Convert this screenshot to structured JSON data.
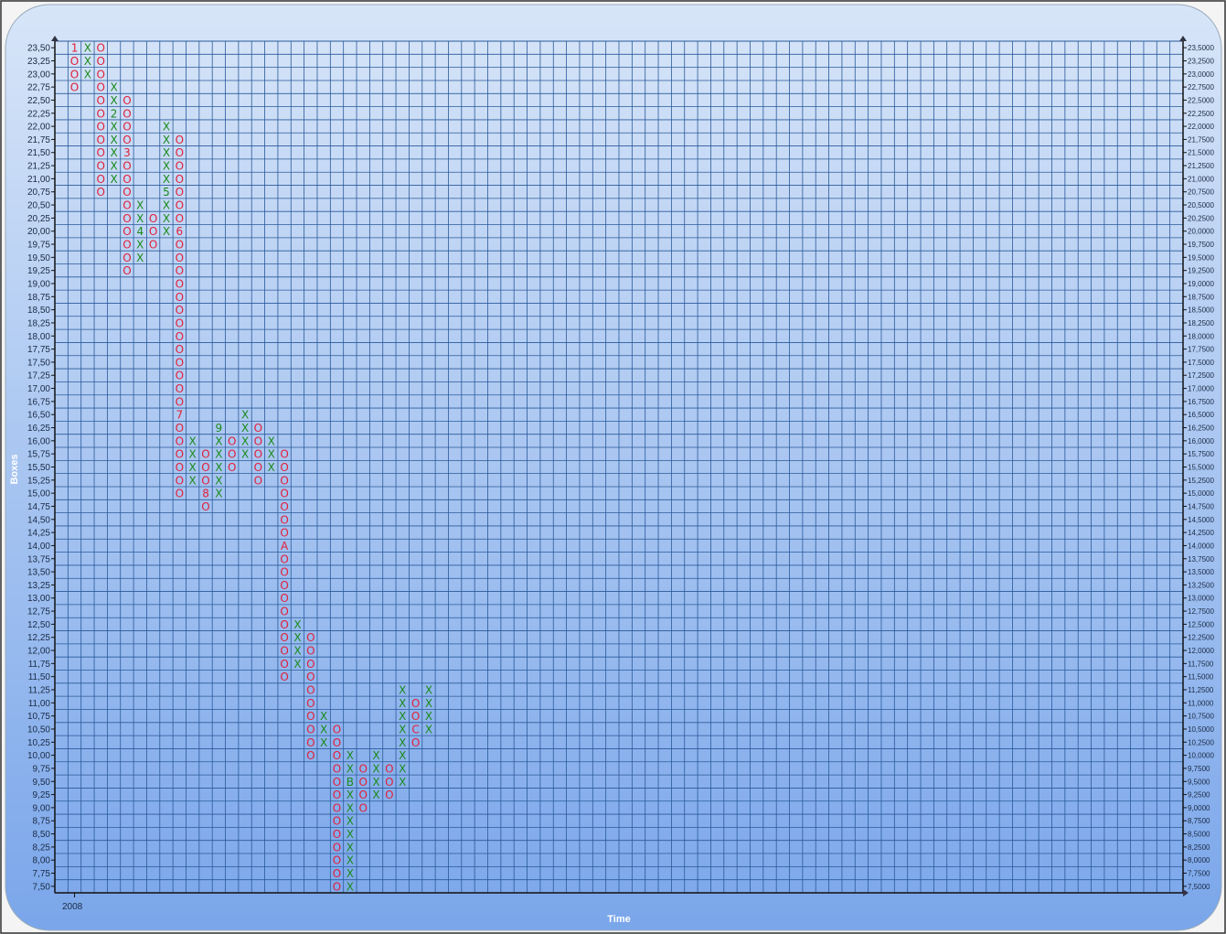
{
  "chart_data": {
    "type": "point-and-figure",
    "title": "",
    "xlabel": "Time",
    "ylabel": "Boxes",
    "x_tick_labels": [
      "2008"
    ],
    "box_size": 0.25,
    "ylim": [
      7.5,
      23.5
    ],
    "grid": true,
    "colors": {
      "X": "#1a8a1a",
      "O": "#e0203a",
      "grid": "#2a5a9a",
      "panel_top": "#d7e5f8",
      "panel_bottom": "#7aa6ea"
    },
    "left_tick_labels": [
      "23,50",
      "23,25",
      "23,00",
      "22,75",
      "22,50",
      "22,25",
      "22,00",
      "21,75",
      "21,50",
      "21,25",
      "21,00",
      "20,75",
      "20,50",
      "20,25",
      "20,00",
      "19,75",
      "19,50",
      "19,25",
      "19,00",
      "18,75",
      "18,50",
      "18,25",
      "18,00",
      "17,75",
      "17,50",
      "17,25",
      "17,00",
      "16,75",
      "16,50",
      "16,25",
      "16,00",
      "15,75",
      "15,50",
      "15,25",
      "15,00",
      "14,75",
      "14,50",
      "14,25",
      "14,00",
      "13,75",
      "13,50",
      "13,25",
      "13,00",
      "12,75",
      "12,50",
      "12,25",
      "12,00",
      "11,75",
      "11,50",
      "11,25",
      "11,00",
      "10,75",
      "10,50",
      "10,25",
      "10,00",
      "9,75",
      "9,50",
      "9,25",
      "9,00",
      "8,75",
      "8,50",
      "8,25",
      "8,00",
      "7,75",
      "7,50"
    ],
    "right_tick_labels": [
      "23,5000",
      "23,2500",
      "23,0000",
      "22,7500",
      "22,5000",
      "22,2500",
      "22,0000",
      "21,7500",
      "21,5000",
      "21,2500",
      "21,0000",
      "20,7500",
      "20,5000",
      "20,2500",
      "20,0000",
      "19,7500",
      "19,5000",
      "19,2500",
      "19,0000",
      "18,7500",
      "18,5000",
      "18,2500",
      "18,0000",
      "17,7500",
      "17,5000",
      "17,2500",
      "17,0000",
      "16,7500",
      "16,5000",
      "16,2500",
      "16,0000",
      "15,7500",
      "15,5000",
      "15,2500",
      "15,0000",
      "14,7500",
      "14,5000",
      "14,2500",
      "14,0000",
      "13,7500",
      "13,5000",
      "13,2500",
      "13,0000",
      "12,7500",
      "12,5000",
      "12,2500",
      "12,0000",
      "11,7500",
      "11,5000",
      "11,2500",
      "11,0000",
      "10,7500",
      "10,5000",
      "10,2500",
      "10,0000",
      "9,7500",
      "9,5000",
      "9,2500",
      "9,0000",
      "8,7500",
      "8,5000",
      "8,2500",
      "8,0000",
      "7,7500",
      "7,5000"
    ],
    "columns": [
      {
        "type": "O",
        "high": 23.5,
        "low": 22.75,
        "markers": {
          "23.5": "1"
        }
      },
      {
        "type": "X",
        "high": 23.5,
        "low": 23.0,
        "markers": {}
      },
      {
        "type": "O",
        "high": 23.5,
        "low": 20.75,
        "markers": {}
      },
      {
        "type": "X",
        "high": 22.75,
        "low": 21.0,
        "markers": {
          "22.25": "2"
        }
      },
      {
        "type": "O",
        "high": 22.5,
        "low": 19.25,
        "markers": {
          "21.5": "3"
        }
      },
      {
        "type": "X",
        "high": 20.5,
        "low": 19.5,
        "markers": {
          "20": "4"
        }
      },
      {
        "type": "O",
        "high": 20.25,
        "low": 19.75,
        "markers": {}
      },
      {
        "type": "X",
        "high": 22.0,
        "low": 20.0,
        "markers": {
          "20.75": "5"
        }
      },
      {
        "type": "O",
        "high": 21.75,
        "low": 15.0,
        "markers": {
          "20": "6",
          "16.5": "7"
        }
      },
      {
        "type": "X",
        "high": 16.0,
        "low": 15.25,
        "markers": {}
      },
      {
        "type": "O",
        "high": 15.75,
        "low": 14.75,
        "markers": {
          "15": "8"
        }
      },
      {
        "type": "X",
        "high": 16.25,
        "low": 15.0,
        "markers": {
          "16.25": "9"
        }
      },
      {
        "type": "O",
        "high": 16.0,
        "low": 15.5,
        "markers": {}
      },
      {
        "type": "X",
        "high": 16.5,
        "low": 15.75,
        "markers": {}
      },
      {
        "type": "O",
        "high": 16.25,
        "low": 15.25,
        "markers": {}
      },
      {
        "type": "X",
        "high": 16.0,
        "low": 15.5,
        "markers": {}
      },
      {
        "type": "O",
        "high": 15.75,
        "low": 11.5,
        "markers": {
          "14": "A"
        }
      },
      {
        "type": "X",
        "high": 12.5,
        "low": 11.75,
        "markers": {}
      },
      {
        "type": "O",
        "high": 12.25,
        "low": 10.0,
        "markers": {}
      },
      {
        "type": "X",
        "high": 10.75,
        "low": 10.25,
        "markers": {}
      },
      {
        "type": "O",
        "high": 10.5,
        "low": 7.5,
        "markers": {}
      },
      {
        "type": "X",
        "high": 10.0,
        "low": 7.5,
        "markers": {
          "9.5": "B"
        }
      },
      {
        "type": "O",
        "high": 9.75,
        "low": 9.0,
        "markers": {}
      },
      {
        "type": "X",
        "high": 10.0,
        "low": 9.25,
        "markers": {}
      },
      {
        "type": "O",
        "high": 9.75,
        "low": 9.25,
        "markers": {}
      },
      {
        "type": "X",
        "high": 11.25,
        "low": 9.5,
        "markers": {}
      },
      {
        "type": "O",
        "high": 11.0,
        "low": 10.25,
        "markers": {
          "10.5": "C"
        }
      },
      {
        "type": "X",
        "high": 11.25,
        "low": 10.5,
        "markers": {}
      }
    ]
  }
}
